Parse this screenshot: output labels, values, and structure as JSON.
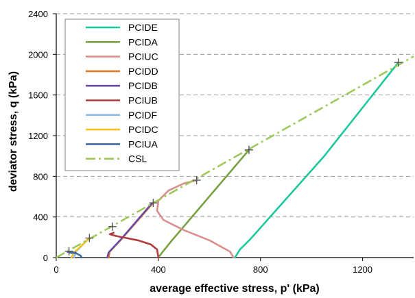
{
  "chart_data": {
    "type": "line",
    "xlabel": "average effective stress, p' (kPa)",
    "ylabel": "deviator stress, q (kPa)",
    "xlim": [
      0,
      1400
    ],
    "ylim": [
      0,
      2400
    ],
    "x_ticks": [
      0,
      400,
      800,
      1200
    ],
    "y_ticks": [
      0,
      400,
      800,
      1200,
      1600,
      2000,
      2400
    ],
    "grid": "horizontal dashed",
    "legend_position": "top-left",
    "series": [
      {
        "name": "PCIDE",
        "color": "#1ec79b",
        "dash": "solid",
        "points": [
          [
            700,
            0
          ],
          [
            720,
            80
          ],
          [
            760,
            180
          ],
          [
            1050,
            1000
          ],
          [
            1340,
            1920
          ]
        ]
      },
      {
        "name": "PCIDA",
        "color": "#77a043",
        "dash": "solid",
        "points": [
          [
            400,
            0
          ],
          [
            415,
            50
          ],
          [
            450,
            160
          ],
          [
            755,
            1060
          ]
        ]
      },
      {
        "name": "PCIUC",
        "color": "#d98f8b",
        "dash": "solid",
        "points": [
          [
            695,
            0
          ],
          [
            680,
            60
          ],
          [
            600,
            170
          ],
          [
            500,
            270
          ],
          [
            420,
            370
          ],
          [
            395,
            460
          ],
          [
            400,
            560
          ],
          [
            440,
            660
          ],
          [
            500,
            730
          ],
          [
            550,
            760
          ]
        ]
      },
      {
        "name": "PCIDD",
        "color": "#e07a2a",
        "dash": "solid",
        "points": [
          [
            205,
            0
          ],
          [
            210,
            60
          ],
          [
            255,
            180
          ],
          [
            380,
            540
          ]
        ]
      },
      {
        "name": "PCIDB",
        "color": "#6a4ba1",
        "dash": "solid",
        "points": [
          [
            200,
            0
          ],
          [
            205,
            50
          ],
          [
            250,
            170
          ],
          [
            375,
            535
          ]
        ]
      },
      {
        "name": "PCIUB",
        "color": "#b33a3a",
        "dash": "solid",
        "points": [
          [
            400,
            0
          ],
          [
            395,
            80
          ],
          [
            370,
            130
          ],
          [
            320,
            170
          ],
          [
            270,
            195
          ],
          [
            230,
            215
          ],
          [
            210,
            230
          ],
          [
            225,
            245
          ]
        ]
      },
      {
        "name": "PCIDF",
        "color": "#8fb8e8",
        "dash": "solid",
        "points": [
          [
            70,
            0
          ],
          [
            78,
            60
          ],
          [
            130,
            195
          ]
        ]
      },
      {
        "name": "PCIDC",
        "color": "#f5c31c",
        "dash": "solid",
        "points": [
          [
            60,
            0
          ],
          [
            70,
            50
          ],
          [
            130,
            190
          ]
        ]
      },
      {
        "name": "PCIUA",
        "color": "#3d6aa3",
        "dash": "solid",
        "points": [
          [
            100,
            0
          ],
          [
            95,
            20
          ],
          [
            80,
            40
          ],
          [
            60,
            55
          ],
          [
            48,
            60
          ],
          [
            45,
            55
          ],
          [
            60,
            45
          ],
          [
            75,
            50
          ]
        ]
      },
      {
        "name": "CSL",
        "color": "#9dc95a",
        "dash": "dashdot",
        "points": [
          [
            0,
            0
          ],
          [
            1400,
            1980
          ]
        ]
      }
    ],
    "failure_markers": [
      [
        50,
        62
      ],
      [
        130,
        192
      ],
      [
        220,
        305
      ],
      [
        380,
        538
      ],
      [
        550,
        762
      ],
      [
        755,
        1060
      ],
      [
        1340,
        1920
      ]
    ]
  }
}
